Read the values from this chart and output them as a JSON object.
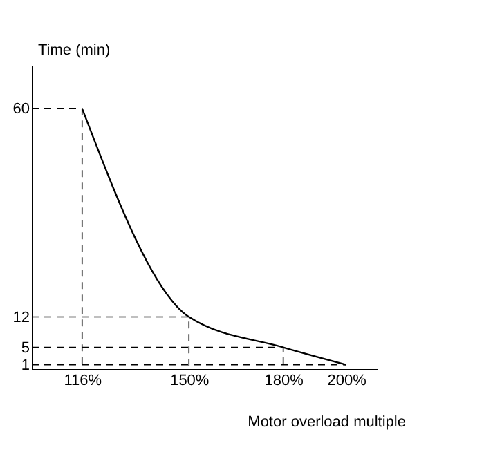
{
  "chart_data": {
    "type": "line",
    "xlabel": "Motor overload multiple",
    "ylabel": "Time (min)",
    "x": [
      116,
      150,
      180,
      200
    ],
    "series": [
      {
        "color": "#000000",
        "values": [
          60,
          12,
          5,
          1
        ]
      },
      {
        "color": "#000000",
        "x": [
          100,
          116,
          116
        ],
        "values": [
          60,
          60,
          0
        ],
        "line_style": "dashed"
      },
      {
        "color": "#000000",
        "x": [
          100,
          150,
          150
        ],
        "values": [
          12,
          12,
          0
        ],
        "line_style": "dashed"
      },
      {
        "color": "#000000",
        "x": [
          100,
          180,
          180
        ],
        "values": [
          5,
          5,
          0
        ],
        "line_style": "dashed"
      },
      {
        "color": "#000000",
        "x": [
          100,
          200
        ],
        "values": [
          1,
          1
        ],
        "line_style": "dashed"
      }
    ],
    "xlim": [
      100,
      210
    ],
    "ylim": [
      0,
      70
    ],
    "xticks": [
      {
        "value": 116,
        "label": "116%"
      },
      {
        "value": 150,
        "label": "150%"
      },
      {
        "value": 180,
        "label": "180%"
      },
      {
        "value": 200,
        "label": "200%"
      }
    ],
    "yticks": [
      1,
      5,
      12,
      60
    ],
    "marker": "none",
    "line_style": "solid"
  }
}
